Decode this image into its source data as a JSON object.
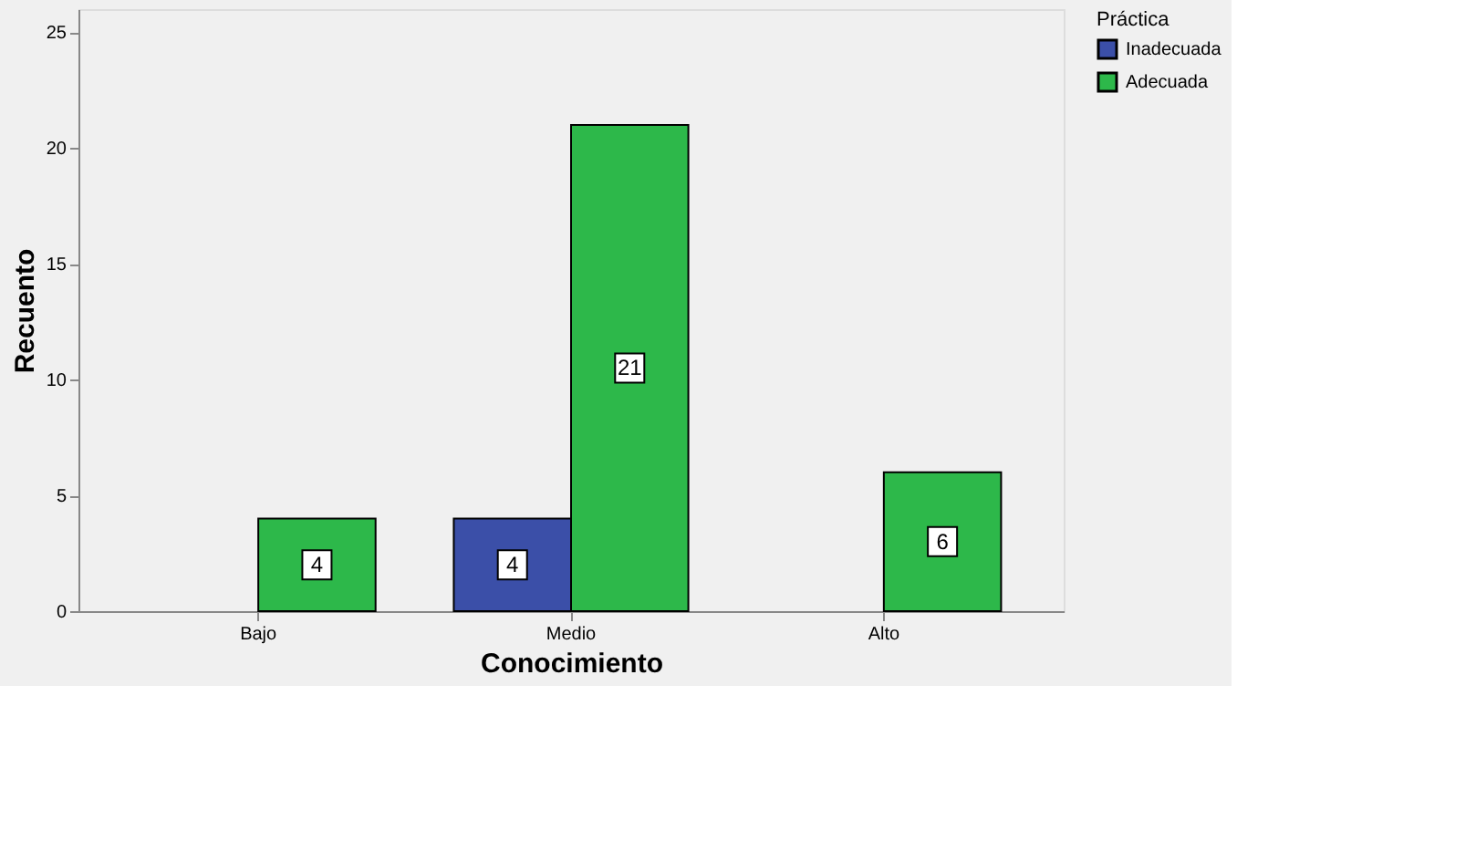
{
  "chart_data": {
    "type": "bar",
    "xlabel": "Conocimiento",
    "ylabel": "Recuento",
    "legend_title": "Práctica",
    "categories": [
      "Bajo",
      "Medio",
      "Alto"
    ],
    "series": [
      {
        "name": "Inadecuada",
        "color": "#3b4fa8",
        "values": [
          null,
          4,
          null
        ]
      },
      {
        "name": "Adecuada",
        "color": "#2db84a",
        "values": [
          4,
          21,
          6
        ]
      }
    ],
    "ylim": [
      0,
      26
    ],
    "yticks": [
      0,
      5,
      10,
      15,
      20,
      25
    ],
    "grid": false,
    "legend": "top right",
    "data_labels": true
  }
}
